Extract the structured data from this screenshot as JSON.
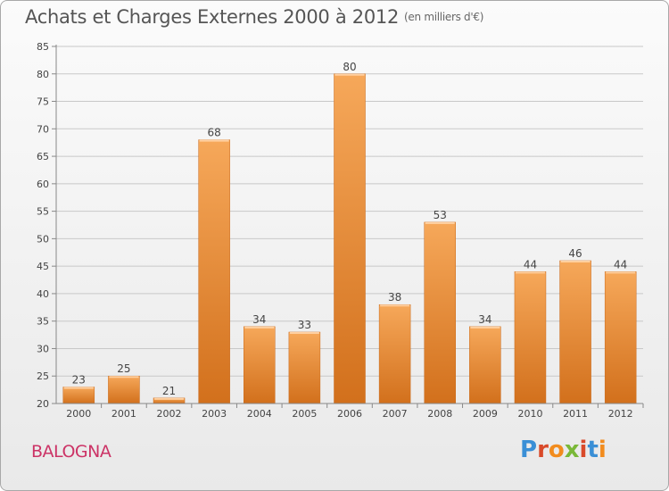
{
  "header": {
    "title": "Achats et Charges Externes 2000 à 2012",
    "unit": "(en milliers d'€)"
  },
  "footer": {
    "town": "BALOGNA",
    "logo_text": "Proxiti",
    "logo_colors": [
      "#3a8fd6",
      "#d94a2a",
      "#f28c1e",
      "#7ab838",
      "#d94a2a",
      "#3a8fd6",
      "#f28c1e"
    ]
  },
  "colors": {
    "bar_light": "#f6a85a",
    "bar_dark": "#d2701c",
    "axis": "#888888",
    "grid": "#c8c8c8",
    "text": "#444444",
    "town": "#cc3366"
  },
  "chart_data": {
    "type": "bar",
    "categories": [
      "2000",
      "2001",
      "2002",
      "2003",
      "2004",
      "2005",
      "2006",
      "2007",
      "2008",
      "2009",
      "2010",
      "2011",
      "2012"
    ],
    "values": [
      23,
      25,
      21,
      68,
      34,
      33,
      80,
      38,
      53,
      34,
      44,
      46,
      44
    ],
    "ylim": [
      20,
      85
    ],
    "yticks": [
      20,
      25,
      30,
      35,
      40,
      45,
      50,
      55,
      60,
      65,
      70,
      75,
      80,
      85
    ],
    "grid": true,
    "data_labels": true
  }
}
